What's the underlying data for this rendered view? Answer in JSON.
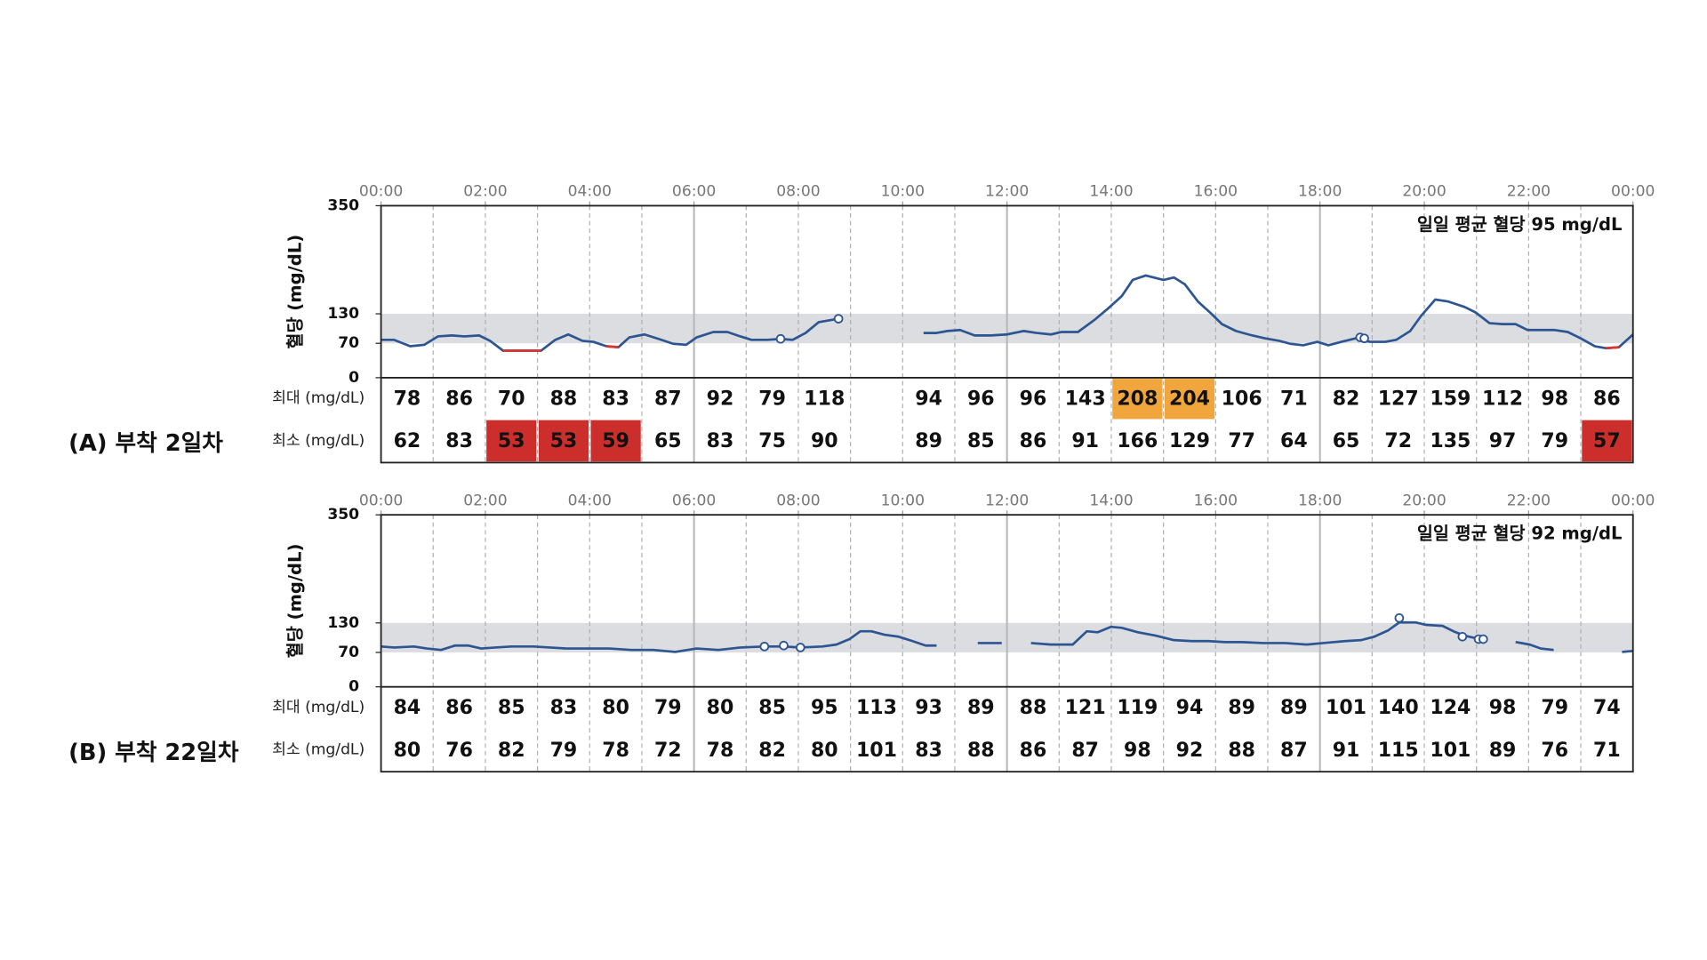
{
  "chart_data": [
    {
      "type": "line",
      "title": "(A) 부착 2일차",
      "ylabel": "혈당 (mg/dL)",
      "annotation": "일일 평균 혈당  95 mg/dL",
      "xlim": [
        0,
        24
      ],
      "xticks": [
        {
          "value": 0,
          "label": "00:00"
        },
        {
          "value": 2,
          "label": "02:00"
        },
        {
          "value": 4,
          "label": "04:00"
        },
        {
          "value": 6,
          "label": "06:00"
        },
        {
          "value": 8,
          "label": "08:00"
        },
        {
          "value": 10,
          "label": "10:00"
        },
        {
          "value": 12,
          "label": "12:00"
        },
        {
          "value": 14,
          "label": "14:00"
        },
        {
          "value": 16,
          "label": "16:00"
        },
        {
          "value": 18,
          "label": "18:00"
        },
        {
          "value": 20,
          "label": "20:00"
        },
        {
          "value": 22,
          "label": "22:00"
        },
        {
          "value": 24,
          "label": "00:00"
        }
      ],
      "ylim": [
        0,
        350
      ],
      "yticks": [
        0,
        70,
        130,
        350
      ],
      "target_range": [
        70,
        130
      ],
      "target_color": "#dcdde0",
      "x": [
        0,
        0.25,
        0.56,
        0.83,
        1.09,
        1.36,
        1.6,
        1.88,
        2.09,
        2.34,
        3.07,
        3.34,
        3.59,
        3.86,
        4.07,
        4.32,
        4.55,
        4.76,
        5.05,
        5.32,
        5.6,
        5.85,
        6.05,
        6.37,
        6.64,
        6.89,
        7.1,
        7.41,
        7.66,
        7.89,
        8.14,
        8.39,
        8.77,
        null,
        10.4,
        10.65,
        10.86,
        11.1,
        11.38,
        11.69,
        12,
        12.32,
        12.57,
        12.84,
        13.05,
        13.36,
        13.67,
        13.95,
        14.2,
        14.41,
        14.66,
        15,
        15.2,
        15.41,
        15.66,
        15.91,
        16.12,
        16.39,
        16.7,
        16.95,
        17.22,
        17.43,
        17.68,
        17.95,
        18.16,
        18.41,
        18.68,
        18.96,
        19.25,
        19.46,
        19.73,
        19.94,
        20.21,
        20.46,
        20.77,
        20.98,
        21.25,
        21.5,
        21.75,
        21.98,
        22.27,
        22.5,
        22.75,
        23,
        23.27,
        23.48,
        23.73,
        24
      ],
      "series": [
        {
          "color": "#2d5591",
          "values": [
            77,
            77,
            64,
            67,
            84,
            86,
            84,
            86,
            75,
            55,
            55,
            77,
            88,
            75,
            73,
            64,
            62,
            82,
            88,
            79,
            69,
            67,
            82,
            93,
            93,
            84,
            77,
            77,
            79,
            77,
            91,
            113,
            120,
            null,
            91,
            91,
            95,
            97,
            86,
            86,
            88,
            95,
            91,
            88,
            93,
            93,
            117,
            142,
            166,
            199,
            208,
            199,
            204,
            190,
            155,
            131,
            109,
            95,
            86,
            80,
            75,
            69,
            66,
            73,
            66,
            73,
            80,
            73,
            73,
            77,
            95,
            126,
            159,
            155,
            144,
            133,
            111,
            109,
            109,
            97,
            97,
            97,
            93,
            80,
            64,
            60,
            62,
            88
          ]
        },
        {
          "color": "#d6372e",
          "x": [
            2.34,
            3.07,
            null,
            4.32,
            4.55,
            null,
            23.48,
            23.73
          ],
          "values": [
            55,
            55,
            null,
            64,
            62,
            null,
            60,
            62
          ]
        }
      ],
      "markers": {
        "x": [
          7.66,
          8.77,
          18.77,
          18.85
        ],
        "values": [
          79,
          120,
          82,
          80
        ]
      },
      "max_label": "최대 (mg/dL)",
      "min_label": "최소 (mg/dL)",
      "max": [
        78,
        86,
        70,
        88,
        83,
        87,
        92,
        79,
        118,
        null,
        94,
        96,
        96,
        143,
        208,
        204,
        106,
        71,
        82,
        127,
        159,
        112,
        98,
        86
      ],
      "min": [
        62,
        83,
        53,
        53,
        59,
        65,
        83,
        75,
        90,
        null,
        89,
        85,
        86,
        91,
        166,
        129,
        77,
        64,
        65,
        72,
        135,
        97,
        79,
        57
      ],
      "max_fill": [
        null,
        null,
        null,
        null,
        null,
        null,
        null,
        null,
        null,
        null,
        null,
        null,
        null,
        null,
        "#f0a63c",
        "#f0a63c",
        null,
        null,
        null,
        null,
        null,
        null,
        null,
        null
      ],
      "min_fill": [
        null,
        null,
        "#cc2e2b",
        "#cc2e2b",
        "#cc2e2b",
        null,
        null,
        null,
        null,
        null,
        null,
        null,
        null,
        null,
        null,
        null,
        null,
        null,
        null,
        null,
        null,
        null,
        null,
        "#cc2e2b"
      ]
    },
    {
      "type": "line",
      "title": "(B) 부착 22일차",
      "ylabel": "혈당 (mg/dL)",
      "annotation": "일일 평균 혈당  92 mg/dL",
      "xlim": [
        0,
        24
      ],
      "xticks": [
        {
          "value": 0,
          "label": "00:00"
        },
        {
          "value": 2,
          "label": "02:00"
        },
        {
          "value": 4,
          "label": "04:00"
        },
        {
          "value": 6,
          "label": "06:00"
        },
        {
          "value": 8,
          "label": "08:00"
        },
        {
          "value": 10,
          "label": "10:00"
        },
        {
          "value": 12,
          "label": "12:00"
        },
        {
          "value": 14,
          "label": "14:00"
        },
        {
          "value": 16,
          "label": "16:00"
        },
        {
          "value": 18,
          "label": "18:00"
        },
        {
          "value": 20,
          "label": "20:00"
        },
        {
          "value": 22,
          "label": "22:00"
        },
        {
          "value": 24,
          "label": "00:00"
        }
      ],
      "ylim": [
        0,
        350
      ],
      "yticks": [
        0,
        70,
        130,
        350
      ],
      "target_range": [
        70,
        130
      ],
      "target_color": "#dcdde0",
      "x": [
        0,
        0.25,
        0.63,
        0.88,
        1.15,
        1.42,
        1.67,
        1.92,
        2.19,
        2.5,
        2.92,
        3.24,
        3.55,
        3.97,
        4.38,
        4.8,
        5.22,
        5.64,
        6.05,
        6.47,
        6.89,
        7.35,
        7.72,
        8.04,
        8.46,
        8.73,
        8.98,
        9.19,
        9.4,
        9.65,
        9.92,
        10.19,
        10.44,
        10.65,
        null,
        11.44,
        11.9,
        null,
        12.46,
        12.84,
        13.26,
        13.53,
        13.74,
        13.99,
        14.2,
        14.51,
        14.86,
        15.2,
        15.55,
        15.87,
        16.18,
        16.49,
        16.91,
        17.33,
        17.75,
        18.06,
        18.48,
        18.79,
        19.04,
        19.31,
        19.52,
        19.83,
        20.04,
        20.35,
        20.56,
        20.77,
        21.08,
        null,
        21.75,
        22.02,
        22.23,
        22.48,
        null,
        23.79,
        24
      ],
      "series": [
        {
          "color": "#2d5591",
          "values": [
            82,
            80,
            82,
            78,
            75,
            84,
            84,
            78,
            80,
            82,
            82,
            80,
            78,
            78,
            78,
            75,
            75,
            71,
            78,
            75,
            80,
            82,
            82,
            80,
            82,
            86,
            97,
            113,
            113,
            106,
            102,
            93,
            84,
            84,
            null,
            89,
            89,
            null,
            89,
            86,
            86,
            113,
            111,
            122,
            120,
            111,
            104,
            95,
            93,
            93,
            91,
            91,
            89,
            89,
            86,
            89,
            93,
            95,
            102,
            115,
            131,
            131,
            126,
            124,
            113,
            104,
            97,
            null,
            91,
            86,
            78,
            75,
            null,
            71,
            73
          ]
        }
      ],
      "markers": {
        "x": [
          7.35,
          7.72,
          8.04,
          19.52,
          20.73,
          21.04,
          21.13
        ],
        "values": [
          82,
          84,
          80,
          140,
          102,
          97,
          97
        ]
      },
      "max_label": "최대 (mg/dL)",
      "min_label": "최소 (mg/dL)",
      "max": [
        84,
        86,
        85,
        83,
        80,
        79,
        80,
        85,
        95,
        113,
        93,
        89,
        88,
        121,
        119,
        94,
        89,
        89,
        101,
        140,
        124,
        98,
        79,
        74
      ],
      "min": [
        80,
        76,
        82,
        79,
        78,
        72,
        78,
        82,
        80,
        101,
        83,
        88,
        86,
        87,
        98,
        92,
        88,
        87,
        91,
        115,
        101,
        89,
        76,
        71
      ]
    }
  ]
}
